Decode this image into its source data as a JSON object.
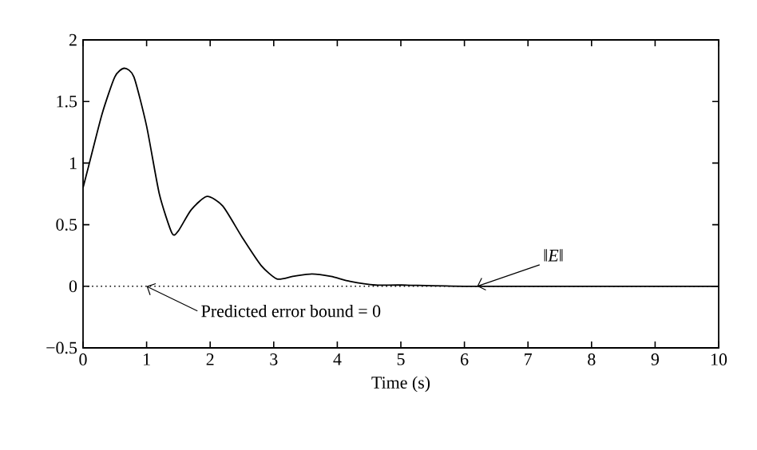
{
  "chart_data": {
    "type": "line",
    "xlabel": "Time (s)",
    "x": [
      0,
      0.1,
      0.3,
      0.5,
      0.65,
      0.8,
      1.0,
      1.2,
      1.4,
      1.5,
      1.7,
      1.95,
      2.2,
      2.5,
      2.8,
      3.05,
      3.3,
      3.6,
      3.9,
      4.2,
      4.6,
      5,
      6,
      8,
      10
    ],
    "series": [
      {
        "color": "#000000",
        "values": [
          0.8,
          1.0,
          1.4,
          1.7,
          1.77,
          1.7,
          1.3,
          0.75,
          0.43,
          0.45,
          0.62,
          0.73,
          0.65,
          0.4,
          0.17,
          0.06,
          0.08,
          0.1,
          0.08,
          0.04,
          0.01,
          0.01,
          0,
          0,
          0
        ]
      }
    ],
    "xlim": [
      0,
      10
    ],
    "ylim": [
      -0.5,
      2
    ],
    "xticks": [
      0,
      1,
      2,
      3,
      4,
      5,
      6,
      7,
      8,
      9,
      10
    ],
    "yticks": [
      {
        "value": -0.5,
        "label": "−0.5"
      },
      0,
      0.5,
      1,
      1.5,
      2
    ],
    "ref_lines": [
      {
        "axis": "y",
        "value": 0,
        "line_style": "dotted",
        "color": "#000000"
      }
    ],
    "annotations": [
      {
        "text": "Predicted error bound = 0",
        "x": 1,
        "y": 0
      },
      {
        "text": "‖*E*‖",
        "x": 6.2,
        "y": 0
      }
    ],
    "grid": false,
    "marker": "none",
    "line_style": "solid"
  }
}
